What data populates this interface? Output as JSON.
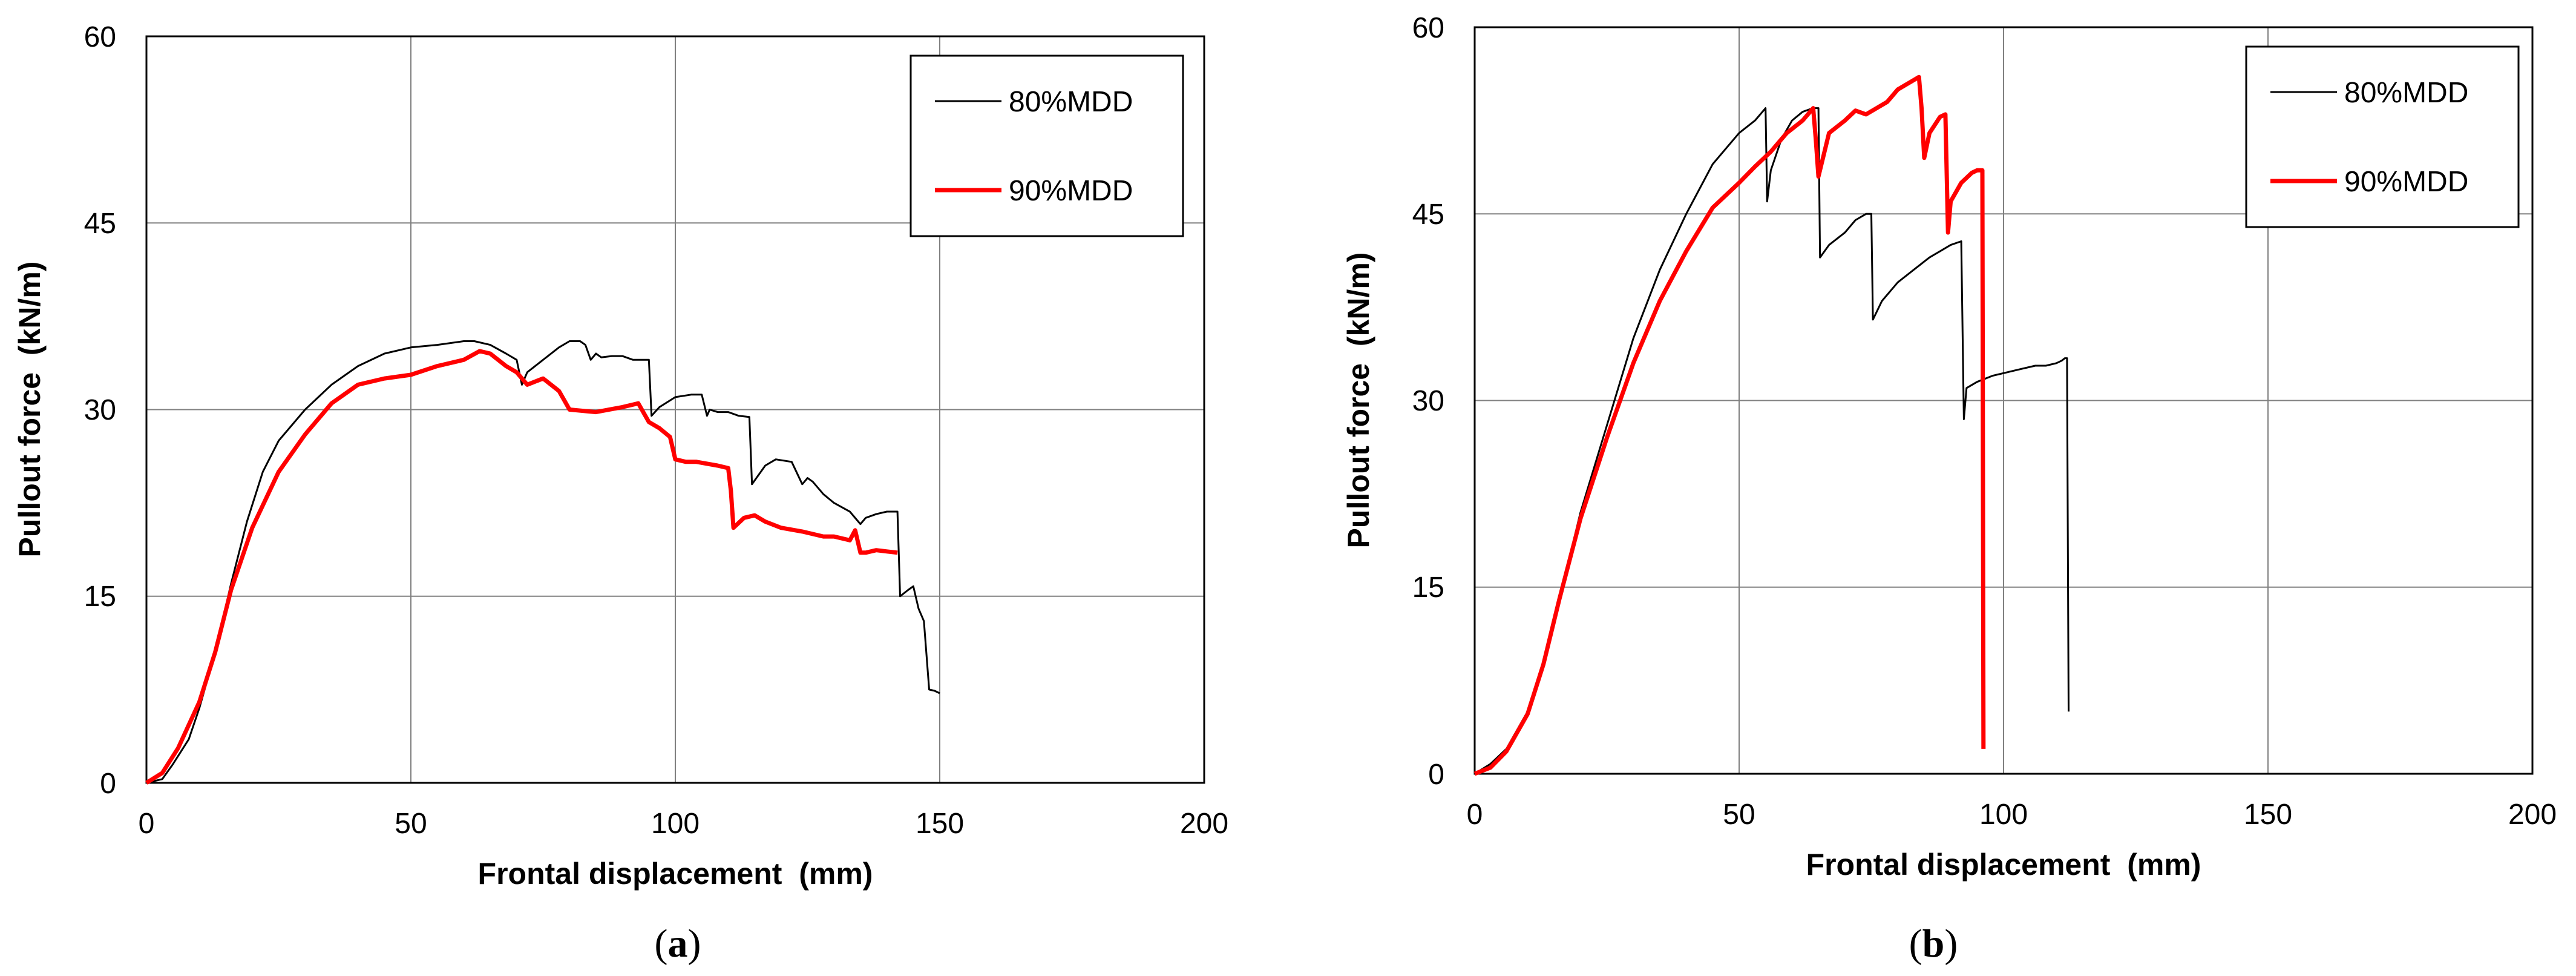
{
  "colors": {
    "series_80": "#000000",
    "series_90": "#ff0000",
    "grid": "#808080",
    "frame": "#000000"
  },
  "chart_data": [
    {
      "id": "a",
      "type": "line",
      "caption_letter": "a",
      "title": "",
      "xlabel": "Frontal displacement  (mm)",
      "ylabel": "Pullout force  (kN/m)",
      "xlim": [
        0,
        200
      ],
      "ylim": [
        0,
        60
      ],
      "xticks": [
        "0",
        "50",
        "100",
        "150",
        "200"
      ],
      "yticks": [
        "0",
        "15",
        "30",
        "45",
        "60"
      ],
      "legend": [
        "80%MDD",
        "90%MDD"
      ],
      "series": [
        {
          "name": "80%MDD",
          "x": [
            0,
            3,
            5,
            8,
            10,
            13,
            16,
            19,
            22,
            25,
            30,
            35,
            40,
            45,
            50,
            55,
            60,
            62,
            65,
            68,
            70,
            71,
            72,
            75,
            78,
            80,
            82,
            83,
            84,
            85,
            86,
            88,
            90,
            92,
            94,
            95,
            95.5,
            97,
            100,
            103,
            105,
            106,
            106.5,
            108,
            110,
            112,
            114,
            114.5,
            117,
            119,
            122,
            124,
            125,
            126,
            128,
            130,
            133,
            135,
            136,
            138,
            140,
            142,
            142.5,
            144,
            145,
            146,
            147,
            148,
            149,
            150
          ],
          "y": [
            0,
            0.3,
            1.5,
            3.5,
            6,
            10.5,
            16,
            21,
            25,
            27.5,
            30,
            32,
            33.5,
            34.5,
            35,
            35.2,
            35.5,
            35.5,
            35.2,
            34.5,
            34,
            32,
            33,
            34,
            35,
            35.5,
            35.5,
            35.2,
            34,
            34.5,
            34.2,
            34.3,
            34.3,
            34,
            34,
            34,
            29.5,
            30.2,
            31,
            31.2,
            31.2,
            29.5,
            30,
            29.8,
            29.8,
            29.5,
            29.4,
            24,
            25.5,
            26,
            25.8,
            24,
            24.5,
            24.2,
            23.2,
            22.5,
            21.8,
            20.8,
            21.3,
            21.6,
            21.8,
            21.8,
            15,
            15.5,
            15.8,
            14,
            13,
            7.5,
            7.4,
            7.2
          ]
        },
        {
          "name": "90%MDD",
          "x": [
            0,
            3,
            6,
            10,
            13,
            16,
            20,
            25,
            30,
            35,
            40,
            45,
            50,
            55,
            60,
            63,
            65,
            68,
            70,
            72,
            75,
            78,
            80,
            85,
            90,
            93,
            95,
            97,
            99,
            100,
            102,
            104,
            108,
            110,
            110.5,
            111,
            113,
            115,
            117,
            120,
            124,
            128,
            130,
            133,
            134,
            135,
            136,
            138,
            140,
            142
          ],
          "y": [
            0,
            0.8,
            2.8,
            6.5,
            10.5,
            15.5,
            20.5,
            25,
            28,
            30.5,
            32,
            32.5,
            32.8,
            33.5,
            34,
            34.7,
            34.5,
            33.5,
            33,
            32,
            32.5,
            31.5,
            30,
            29.8,
            30.2,
            30.5,
            29,
            28.5,
            27.8,
            26,
            25.8,
            25.8,
            25.5,
            25.3,
            23.5,
            20.5,
            21.3,
            21.5,
            21,
            20.5,
            20.2,
            19.8,
            19.8,
            19.5,
            20.3,
            18.5,
            18.5,
            18.7,
            18.6,
            18.5
          ]
        }
      ]
    },
    {
      "id": "b",
      "type": "line",
      "caption_letter": "b",
      "title": "",
      "xlabel": "Frontal displacement  (mm)",
      "ylabel": "Pullout force  (kN/m)",
      "xlim": [
        0,
        200
      ],
      "ylim": [
        0,
        60
      ],
      "xticks": [
        "0",
        "50",
        "100",
        "150",
        "200"
      ],
      "yticks": [
        "0",
        "15",
        "30",
        "45",
        "60"
      ],
      "legend": [
        "80%MDD",
        "90%MDD"
      ],
      "series": [
        {
          "name": "80%MDD",
          "x": [
            0,
            3,
            6,
            10,
            13,
            16,
            20,
            25,
            30,
            35,
            40,
            45,
            50,
            53,
            55,
            55.3,
            56,
            58,
            60,
            62,
            64,
            65,
            65.3,
            67,
            70,
            72,
            74,
            75,
            75.3,
            77,
            80,
            83,
            86,
            88,
            90,
            92,
            92.5,
            93,
            95,
            98,
            100,
            103,
            106,
            108,
            110,
            111,
            111.6,
            112,
            112.3
          ],
          "y": [
            0,
            0.8,
            2,
            5,
            9,
            14,
            21,
            28,
            35,
            40.5,
            45,
            49,
            51.5,
            52.5,
            53.5,
            46,
            48.5,
            51,
            52.5,
            53.2,
            53.5,
            53.5,
            41.5,
            42.5,
            43.5,
            44.5,
            45,
            45,
            36.5,
            38,
            39.5,
            40.5,
            41.5,
            42,
            42.5,
            42.8,
            28.5,
            31,
            31.5,
            32,
            32.2,
            32.5,
            32.8,
            32.8,
            33,
            33.2,
            33.4,
            33.4,
            5
          ]
        },
        {
          "name": "90%MDD",
          "x": [
            0,
            3,
            6,
            10,
            13,
            16,
            20,
            25,
            30,
            35,
            40,
            45,
            50,
            53,
            56,
            59,
            62,
            64,
            64.5,
            65,
            67,
            70,
            72,
            74,
            76,
            78,
            80,
            82,
            84,
            84.5,
            85,
            86,
            88,
            89,
            89.5,
            90,
            92,
            94,
            95,
            96,
            96.2
          ],
          "y": [
            0,
            0.5,
            1.8,
            4.8,
            8.8,
            14,
            20.5,
            27,
            33,
            38,
            42,
            45.5,
            47.5,
            48.8,
            50,
            51.5,
            52.5,
            53.5,
            51,
            48,
            51.5,
            52.5,
            53.3,
            53,
            53.5,
            54,
            55,
            55.5,
            56,
            53.5,
            49.5,
            51.5,
            52.8,
            53,
            43.5,
            46,
            47.5,
            48.3,
            48.5,
            48.5,
            2
          ]
        }
      ]
    }
  ]
}
